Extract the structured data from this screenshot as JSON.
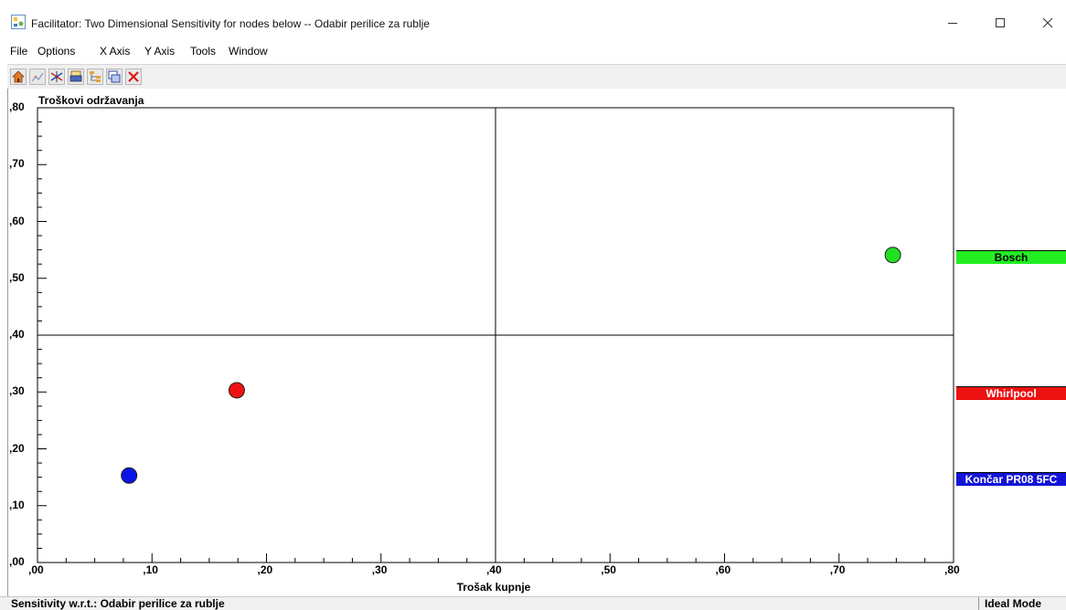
{
  "window": {
    "title": "Facilitator: Two Dimensional  Sensitivity for nodes below -- Odabir perilice za rublje"
  },
  "menu": {
    "items": [
      {
        "label": "File"
      },
      {
        "label": "Options"
      },
      {
        "label": "X Axis"
      },
      {
        "label": "Y Axis"
      },
      {
        "label": "Tools"
      },
      {
        "label": "Window"
      }
    ]
  },
  "toolbar": {
    "buttons": [
      {
        "icon": "home-icon"
      },
      {
        "icon": "chart-icon"
      },
      {
        "icon": "sensitivity-icon"
      },
      {
        "icon": "print-icon"
      },
      {
        "icon": "tree-icon"
      },
      {
        "icon": "copy-window-icon"
      },
      {
        "icon": "close-icon"
      }
    ]
  },
  "chart_data": {
    "type": "scatter",
    "xlabel": "Trošak kupnje",
    "ylabel": "Troškovi održavanja",
    "xlim": [
      0,
      0.8
    ],
    "ylim": [
      0,
      0.8
    ],
    "x_ticks": [
      ",00",
      ",10",
      ",20",
      ",30",
      ",40",
      ",50",
      ",60",
      ",70",
      ",80"
    ],
    "y_ticks": [
      ",00",
      ",10",
      ",20",
      ",30",
      ",40",
      ",50",
      ",60",
      ",70",
      ",80"
    ],
    "quadrant_lines": {
      "x": 0.4,
      "y": 0.4
    },
    "points": [
      {
        "name": "Bosch",
        "x": 0.747,
        "y": 0.541,
        "color": "#20e020"
      },
      {
        "name": "Whirlpool",
        "x": 0.174,
        "y": 0.303,
        "color": "#ee1111"
      },
      {
        "name": "Končar PR08 5FC",
        "x": 0.08,
        "y": 0.153,
        "color": "#0a14e6"
      }
    ],
    "legend": [
      {
        "label": "Bosch",
        "color": "#22ee22",
        "text_color": "#000000"
      },
      {
        "label": "Whirlpool",
        "color": "#ee1111",
        "text_color": "#ffffff"
      },
      {
        "label": "Končar PR08 5FC",
        "color": "#1414d8",
        "text_color": "#ffffff"
      }
    ]
  },
  "status": {
    "left": "Sensitivity w.r.t.: Odabir perilice za rublje",
    "right": "Ideal Mode"
  }
}
